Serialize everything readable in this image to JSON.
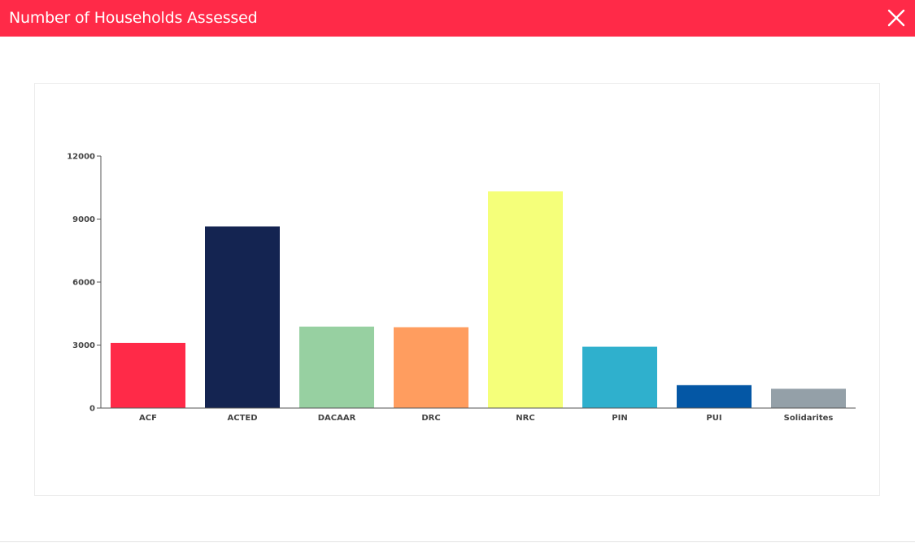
{
  "header": {
    "title": "Number of Households Assessed",
    "background_color": "#ff2a48",
    "close_icon": "close-icon"
  },
  "chart_data": {
    "type": "bar",
    "categories": [
      "ACF",
      "ACTED",
      "DACAAR",
      "DRC",
      "NRC",
      "PIN",
      "PUI",
      "Solidarites"
    ],
    "values": [
      3100,
      8650,
      3880,
      3850,
      10320,
      2920,
      1090,
      920
    ],
    "colors": [
      "#ff2a48",
      "#142451",
      "#97d0a1",
      "#ff9d5f",
      "#f5ff7a",
      "#2fb0cd",
      "#0457a5",
      "#94a0a8"
    ],
    "ylim": [
      0,
      12000
    ],
    "yticks": [
      "0",
      "3000",
      "6000",
      "9000",
      "12000"
    ],
    "title": "",
    "xlabel": "",
    "ylabel": "",
    "grid": false,
    "legend": "none"
  }
}
